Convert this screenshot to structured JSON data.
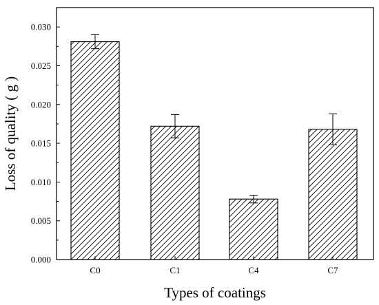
{
  "chart_data": {
    "type": "bar",
    "categories": [
      "C0",
      "C1",
      "C4",
      "C7"
    ],
    "values": [
      0.0281,
      0.0172,
      0.0078,
      0.0168
    ],
    "errors": [
      0.0009,
      0.0015,
      0.0005,
      0.002
    ],
    "xlabel": "Types of coatings",
    "ylabel": "Loss of quality ( g )",
    "ylim": [
      0.0,
      0.0325
    ],
    "yticks": [
      "0.000",
      "0.005",
      "0.010",
      "0.015",
      "0.020",
      "0.025",
      "0.030"
    ],
    "ytick_values": [
      0.0,
      0.005,
      0.01,
      0.015,
      0.02,
      0.025,
      0.03
    ],
    "bar_fill": "hatched",
    "grid": false,
    "colors": {
      "bar_stroke": "#000000",
      "hatch": "#000000",
      "axis": "#000000",
      "background": "#ffffff"
    }
  }
}
